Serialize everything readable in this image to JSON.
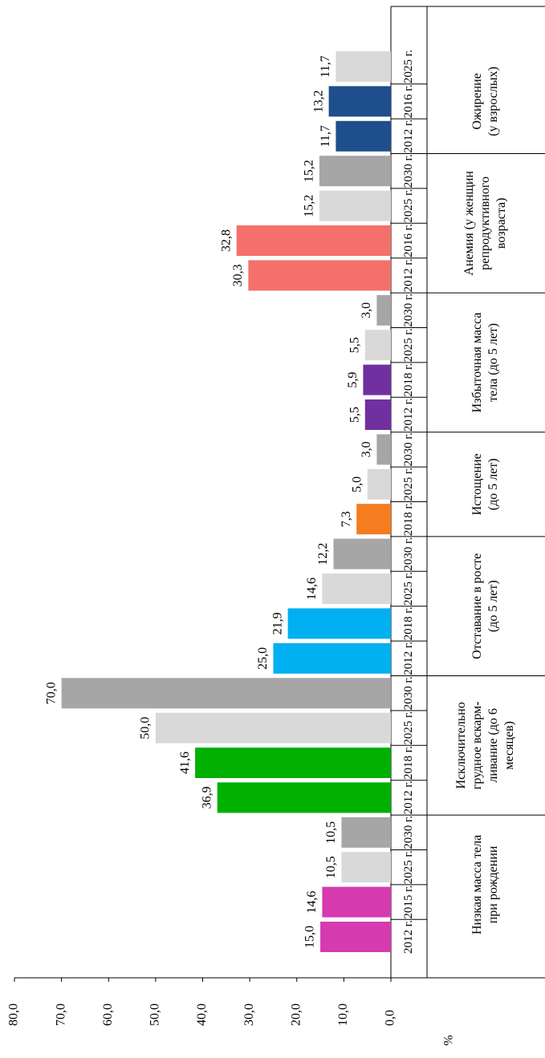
{
  "chart_data": {
    "type": "bar",
    "ylabel": "%",
    "ylim": [
      0,
      80
    ],
    "yticks": [
      {
        "value": 0,
        "label": "0,0"
      },
      {
        "value": 10,
        "label": "10,0"
      },
      {
        "value": 20,
        "label": "20,0"
      },
      {
        "value": 30,
        "label": "30,0"
      },
      {
        "value": 40,
        "label": "40,0"
      },
      {
        "value": 50,
        "label": "50,0"
      },
      {
        "value": 60,
        "label": "60,0"
      },
      {
        "value": 70,
        "label": "70,0"
      },
      {
        "value": 80,
        "label": "80,0"
      }
    ],
    "groups": [
      {
        "name": [
          "Низкая масса тела",
          "при рождении"
        ],
        "categories": [
          "2012 г.",
          "2015 г.",
          "2025 г.",
          "2030 г."
        ],
        "values": [
          15.0,
          14.6,
          10.5,
          10.5
        ],
        "value_labels": [
          "15,0",
          "14,6",
          "10,5",
          "10,5"
        ],
        "colors": [
          "#d63aaf",
          "#d63aaf",
          "#d9d9d9",
          "#a6a6a6"
        ]
      },
      {
        "name": [
          "Исключительно",
          "грудное вскарм-",
          "ливание (до 6",
          "месяцев)"
        ],
        "categories": [
          "2012 г.",
          "2018 г.",
          "2025 г.",
          "2030 г."
        ],
        "values": [
          36.9,
          41.6,
          50.0,
          70.0
        ],
        "value_labels": [
          "36,9",
          "41,6",
          "50,0",
          "70,0"
        ],
        "colors": [
          "#00b000",
          "#00b000",
          "#d9d9d9",
          "#a6a6a6"
        ]
      },
      {
        "name": [
          "Отставание в росте",
          "(до 5 лет)"
        ],
        "categories": [
          "2012 г.",
          "2018 г.",
          "2025 г.",
          "2030 г."
        ],
        "values": [
          25.0,
          21.9,
          14.6,
          12.2
        ],
        "value_labels": [
          "25,0",
          "21,9",
          "14,6",
          "12,2"
        ],
        "colors": [
          "#00b0f0",
          "#00b0f0",
          "#d9d9d9",
          "#a6a6a6"
        ]
      },
      {
        "name": [
          "Истощение",
          "(до 5 лет)"
        ],
        "categories": [
          "2018 г.",
          "2025 г.",
          "2030 г."
        ],
        "values": [
          7.3,
          5.0,
          3.0
        ],
        "value_labels": [
          "7,3",
          "5,0",
          "3,0"
        ],
        "colors": [
          "#f57c1f",
          "#d9d9d9",
          "#a6a6a6"
        ]
      },
      {
        "name": [
          "Избыточная масса",
          "тела (до 5 лет)"
        ],
        "categories": [
          "2012 г.",
          "2018 г.",
          "2025 г.",
          "2030 г."
        ],
        "values": [
          5.5,
          5.9,
          5.5,
          3.0
        ],
        "value_labels": [
          "5,5",
          "5,9",
          "5,5",
          "3,0"
        ],
        "colors": [
          "#7030a0",
          "#7030a0",
          "#d9d9d9",
          "#a6a6a6"
        ]
      },
      {
        "name": [
          "Анемия (у женщин",
          "репродуктивного",
          "возраста)"
        ],
        "categories": [
          "2012 г.",
          "2016 г.",
          "2025 г.",
          "2030 г."
        ],
        "values": [
          30.3,
          32.8,
          15.2,
          15.2
        ],
        "value_labels": [
          "30,3",
          "32,8",
          "15,2",
          "15,2"
        ],
        "colors": [
          "#f4706a",
          "#f4706a",
          "#d9d9d9",
          "#a6a6a6"
        ]
      },
      {
        "name": [
          "Ожирение",
          "(у взрослых)"
        ],
        "categories": [
          "2012 г.",
          "2016 г.",
          "2025 г."
        ],
        "values": [
          11.7,
          13.2,
          11.7
        ],
        "value_labels": [
          "11,7",
          "13,2",
          "11,7"
        ],
        "colors": [
          "#1f4e8c",
          "#1f4e8c",
          "#d9d9d9"
        ]
      }
    ]
  }
}
